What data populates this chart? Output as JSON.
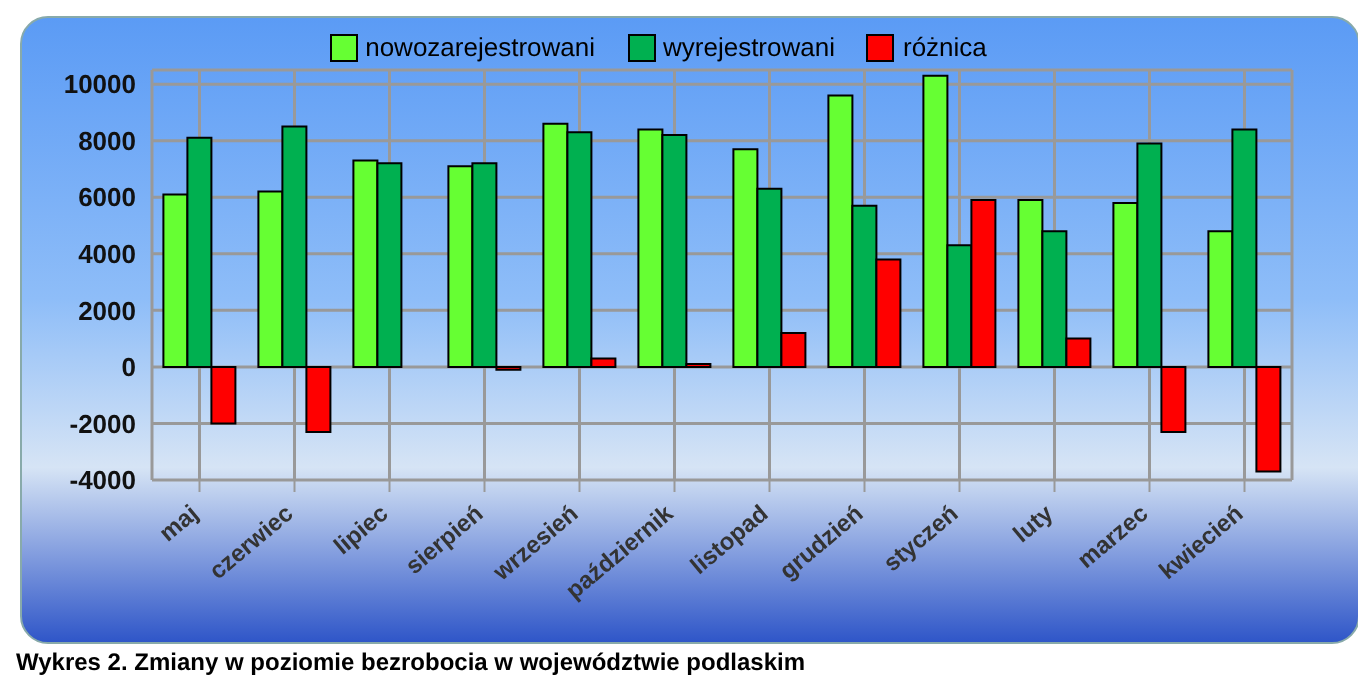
{
  "chart_data": {
    "type": "bar",
    "categories": [
      "maj",
      "czerwiec",
      "lipiec",
      "sierpień",
      "wrzesień",
      "październik",
      "listopad",
      "grudzień",
      "styczeń",
      "luty",
      "marzec",
      "kwiecień"
    ],
    "series": [
      {
        "name": "nowozarejestrowani",
        "color": "#66ff33",
        "values": [
          6100,
          6200,
          7300,
          7100,
          8600,
          8400,
          7700,
          9600,
          10300,
          5900,
          5800,
          4800
        ]
      },
      {
        "name": "wyrejestrowani",
        "color": "#00b050",
        "values": [
          8100,
          8500,
          7200,
          7200,
          8300,
          8200,
          6300,
          5700,
          4300,
          4800,
          7900,
          8400
        ]
      },
      {
        "name": "różnica",
        "color": "#ff0000",
        "values": [
          -2000,
          -2300,
          0,
          -100,
          300,
          100,
          1200,
          3800,
          5900,
          1000,
          -2300,
          -3700
        ]
      }
    ],
    "ylim": [
      -4000,
      10500
    ],
    "yticks": [
      -4000,
      -2000,
      0,
      2000,
      4000,
      6000,
      8000,
      10000
    ],
    "grid": true,
    "legend": "top",
    "annotations": [
      "Wykres 2. Zmiany w poziomie bezrobocia w województwie podlaskim"
    ]
  }
}
